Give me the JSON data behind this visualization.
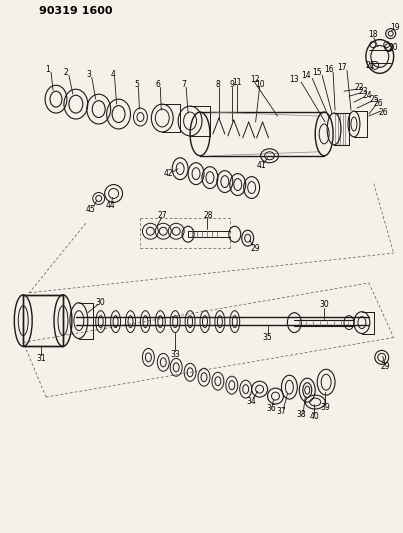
{
  "title": "90319 1600",
  "bg_color": "#f5f0e8",
  "line_color": "#1a1a1a",
  "label_color": "#000000",
  "fig_width": 4.03,
  "fig_height": 5.33,
  "dpi": 100
}
